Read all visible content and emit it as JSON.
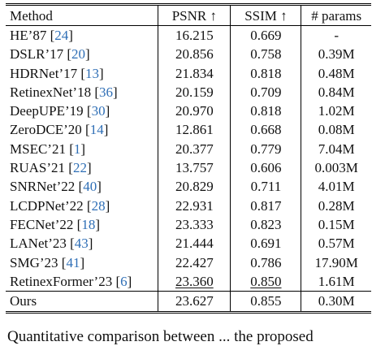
{
  "table": {
    "headers": {
      "method": "Method",
      "psnr": "PSNR ↑",
      "ssim": "SSIM ↑",
      "params": "# params"
    },
    "rows": [
      {
        "name": "HE’87",
        "cite": "24",
        "psnr": "16.215",
        "ssim": "0.669",
        "params": "-"
      },
      {
        "name": "DSLR’17",
        "cite": "20",
        "psnr": "20.856",
        "ssim": "0.758",
        "params": "0.39M"
      },
      {
        "name": "HDRNet’17",
        "cite": "13",
        "psnr": "21.834",
        "ssim": "0.818",
        "params": "0.48M"
      },
      {
        "name": "RetinexNet’18",
        "cite": "36",
        "psnr": "20.159",
        "ssim": "0.709",
        "params": "0.84M"
      },
      {
        "name": "DeepUPE’19",
        "cite": "30",
        "psnr": "20.970",
        "ssim": "0.818",
        "params": "1.02M"
      },
      {
        "name": "ZeroDCE’20",
        "cite": "14",
        "psnr": "12.861",
        "ssim": "0.668",
        "params": "0.08M"
      },
      {
        "name": "MSEC’21",
        "cite": "1",
        "psnr": "20.377",
        "ssim": "0.779",
        "params": "7.04M"
      },
      {
        "name": "RUAS’21",
        "cite": "22",
        "psnr": "13.757",
        "ssim": "0.606",
        "params": "0.003M"
      },
      {
        "name": "SNRNet’22",
        "cite": "40",
        "psnr": "20.829",
        "ssim": "0.711",
        "params": "4.01M"
      },
      {
        "name": "LCDPNet’22",
        "cite": "28",
        "psnr": "22.931",
        "ssim": "0.817",
        "params": "0.28M"
      },
      {
        "name": "FECNet’22",
        "cite": "18",
        "psnr": "23.333",
        "ssim": "0.823",
        "params": "0.15M"
      },
      {
        "name": "LANet’23",
        "cite": "43",
        "psnr": "21.444",
        "ssim": "0.691",
        "params": "0.57M"
      },
      {
        "name": "SMG’23",
        "cite": "41",
        "psnr": "22.427",
        "ssim": "0.786",
        "params": "17.90M"
      },
      {
        "name": "RetinexFormer’23",
        "cite": "6",
        "psnr": "23.360",
        "ssim": "0.850",
        "params": "1.61M"
      }
    ],
    "ours": {
      "name": "Ours",
      "psnr": "23.627",
      "ssim": "0.855",
      "params": "0.30M"
    }
  },
  "caption_partial": "Quantitative comparison between ... the proposed"
}
